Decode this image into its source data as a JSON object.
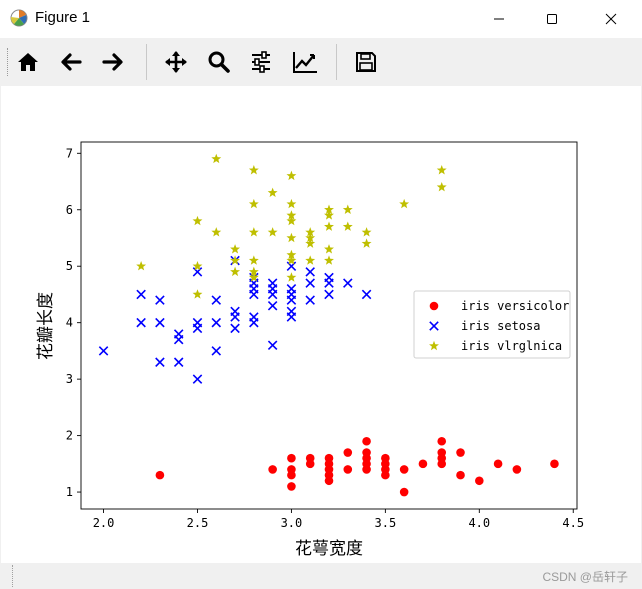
{
  "window": {
    "title": "Figure 1"
  },
  "toolbar": {
    "buttons": [
      {
        "icon": "home-icon"
      },
      {
        "icon": "back-arrow-icon"
      },
      {
        "icon": "forward-arrow-icon"
      },
      {
        "icon": "pan-icon"
      },
      {
        "icon": "zoom-icon"
      },
      {
        "icon": "configure-subplots-icon"
      },
      {
        "icon": "edit-axis-icon"
      },
      {
        "icon": "save-icon"
      }
    ]
  },
  "chart_data": {
    "type": "scatter",
    "xlabel": "花萼宽度",
    "ylabel": "花瓣长度",
    "xlim": [
      1.88,
      4.52
    ],
    "ylim": [
      0.7,
      7.2
    ],
    "xticks": [
      "2.0",
      "2.5",
      "3.0",
      "3.5",
      "4.0",
      "4.5"
    ],
    "yticks": [
      "1",
      "2",
      "3",
      "4",
      "5",
      "6",
      "7"
    ],
    "legend_position": "center-right",
    "series": [
      {
        "name": "iris versicolor",
        "marker": "circle",
        "color": "#ff0000",
        "points": [
          [
            2.3,
            1.3
          ],
          [
            2.9,
            1.4
          ],
          [
            3.0,
            1.4
          ],
          [
            3.0,
            1.3
          ],
          [
            3.0,
            1.1
          ],
          [
            3.0,
            1.6
          ],
          [
            3.1,
            1.5
          ],
          [
            3.1,
            1.6
          ],
          [
            3.2,
            1.4
          ],
          [
            3.2,
            1.3
          ],
          [
            3.2,
            1.2
          ],
          [
            3.2,
            1.5
          ],
          [
            3.2,
            1.6
          ],
          [
            3.3,
            1.4
          ],
          [
            3.3,
            1.7
          ],
          [
            3.4,
            1.4
          ],
          [
            3.4,
            1.5
          ],
          [
            3.4,
            1.6
          ],
          [
            3.4,
            1.7
          ],
          [
            3.4,
            1.9
          ],
          [
            3.5,
            1.3
          ],
          [
            3.5,
            1.4
          ],
          [
            3.5,
            1.5
          ],
          [
            3.5,
            1.6
          ],
          [
            3.6,
            1.0
          ],
          [
            3.6,
            1.4
          ],
          [
            3.7,
            1.5
          ],
          [
            3.8,
            1.5
          ],
          [
            3.8,
            1.6
          ],
          [
            3.8,
            1.7
          ],
          [
            3.8,
            1.9
          ],
          [
            3.9,
            1.3
          ],
          [
            3.9,
            1.7
          ],
          [
            4.0,
            1.2
          ],
          [
            4.1,
            1.5
          ],
          [
            4.2,
            1.4
          ],
          [
            4.4,
            1.5
          ]
        ]
      },
      {
        "name": "iris setosa",
        "marker": "x",
        "color": "#0000ff",
        "points": [
          [
            2.0,
            3.5
          ],
          [
            2.2,
            4.0
          ],
          [
            2.2,
            4.5
          ],
          [
            2.3,
            3.3
          ],
          [
            2.3,
            4.0
          ],
          [
            2.3,
            4.4
          ],
          [
            2.4,
            3.3
          ],
          [
            2.4,
            3.7
          ],
          [
            2.4,
            3.8
          ],
          [
            2.5,
            3.0
          ],
          [
            2.5,
            3.9
          ],
          [
            2.5,
            4.0
          ],
          [
            2.5,
            4.9
          ],
          [
            2.6,
            3.5
          ],
          [
            2.6,
            4.0
          ],
          [
            2.6,
            4.4
          ],
          [
            2.7,
            3.9
          ],
          [
            2.7,
            4.1
          ],
          [
            2.7,
            4.2
          ],
          [
            2.7,
            5.1
          ],
          [
            2.8,
            4.0
          ],
          [
            2.8,
            4.1
          ],
          [
            2.8,
            4.5
          ],
          [
            2.8,
            4.6
          ],
          [
            2.8,
            4.7
          ],
          [
            2.8,
            4.8
          ],
          [
            2.9,
            3.6
          ],
          [
            2.9,
            4.3
          ],
          [
            2.9,
            4.5
          ],
          [
            2.9,
            4.6
          ],
          [
            2.9,
            4.7
          ],
          [
            3.0,
            4.1
          ],
          [
            3.0,
            4.2
          ],
          [
            3.0,
            4.4
          ],
          [
            3.0,
            4.5
          ],
          [
            3.0,
            4.6
          ],
          [
            3.0,
            5.0
          ],
          [
            3.1,
            4.4
          ],
          [
            3.1,
            4.7
          ],
          [
            3.1,
            4.9
          ],
          [
            3.2,
            4.5
          ],
          [
            3.2,
            4.7
          ],
          [
            3.2,
            4.8
          ],
          [
            3.3,
            4.7
          ],
          [
            3.4,
            4.5
          ]
        ]
      },
      {
        "name": "iris vlrglnica",
        "marker": "star",
        "color": "#bfbf00",
        "points": [
          [
            2.2,
            5.0
          ],
          [
            2.5,
            4.5
          ],
          [
            2.5,
            5.0
          ],
          [
            2.5,
            5.8
          ],
          [
            2.6,
            5.6
          ],
          [
            2.6,
            6.9
          ],
          [
            2.7,
            4.9
          ],
          [
            2.7,
            5.1
          ],
          [
            2.7,
            5.3
          ],
          [
            2.8,
            4.8
          ],
          [
            2.8,
            4.9
          ],
          [
            2.8,
            5.1
          ],
          [
            2.8,
            5.6
          ],
          [
            2.8,
            6.1
          ],
          [
            2.8,
            6.7
          ],
          [
            2.9,
            5.6
          ],
          [
            2.9,
            6.3
          ],
          [
            3.0,
            4.8
          ],
          [
            3.0,
            5.1
          ],
          [
            3.0,
            5.2
          ],
          [
            3.0,
            5.5
          ],
          [
            3.0,
            5.8
          ],
          [
            3.0,
            5.9
          ],
          [
            3.0,
            6.1
          ],
          [
            3.0,
            6.6
          ],
          [
            3.1,
            5.1
          ],
          [
            3.1,
            5.4
          ],
          [
            3.1,
            5.5
          ],
          [
            3.1,
            5.6
          ],
          [
            3.2,
            5.1
          ],
          [
            3.2,
            5.3
          ],
          [
            3.2,
            5.7
          ],
          [
            3.2,
            5.9
          ],
          [
            3.2,
            6.0
          ],
          [
            3.3,
            5.7
          ],
          [
            3.3,
            6.0
          ],
          [
            3.4,
            5.4
          ],
          [
            3.4,
            5.6
          ],
          [
            3.6,
            6.1
          ],
          [
            3.8,
            6.4
          ],
          [
            3.8,
            6.7
          ]
        ]
      }
    ]
  },
  "statusbar": {
    "watermark": "CSDN @岳轩子"
  }
}
